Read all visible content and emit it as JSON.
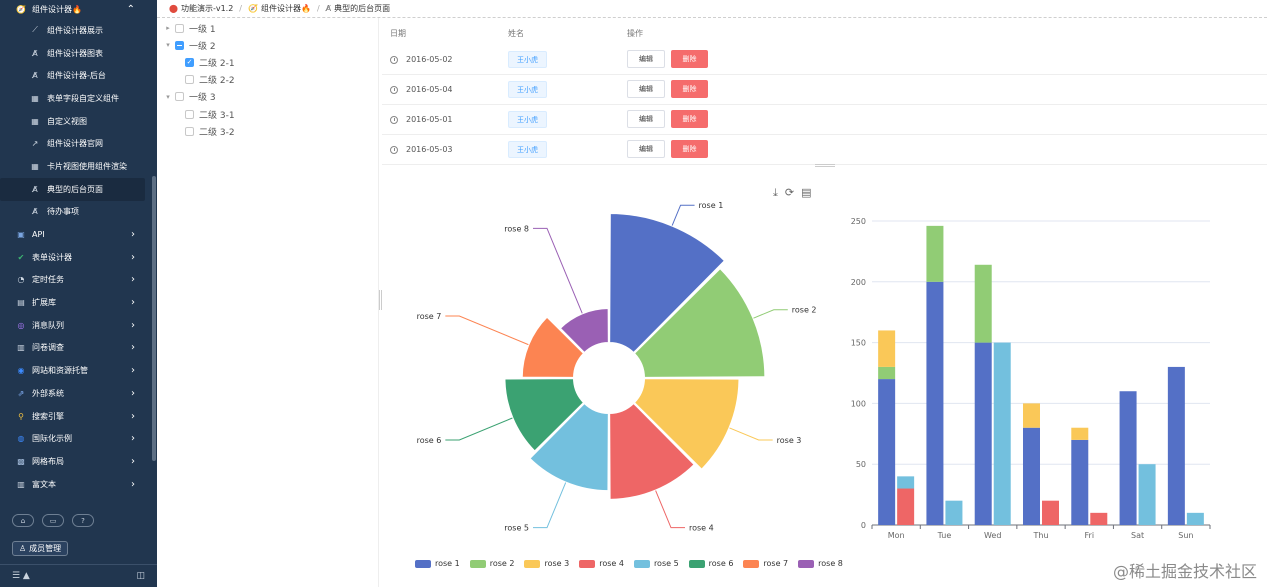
{
  "sidebar": {
    "top": {
      "label": "组件设计器🔥",
      "icon": "compass-icon"
    },
    "children": [
      {
        "label": "组件设计器展示",
        "icon": "chart-line-icon"
      },
      {
        "label": "组件设计器图表",
        "icon": "code-icon"
      },
      {
        "label": "组件设计器-后台",
        "icon": "code-icon"
      },
      {
        "label": "表单字段自定义组件",
        "icon": "grid-icon"
      },
      {
        "label": "自定义视图",
        "icon": "grid-icon"
      },
      {
        "label": "组件设计器官网",
        "icon": "external-link-icon"
      },
      {
        "label": "卡片视图使用组件渲染",
        "icon": "grid-icon"
      },
      {
        "label": "典型的后台页面",
        "icon": "code-icon",
        "active": true
      },
      {
        "label": "待办事项",
        "icon": "code-icon"
      }
    ],
    "groups": [
      {
        "label": "API",
        "icon": "api-icon"
      },
      {
        "label": "表单设计器",
        "icon": "check-icon"
      },
      {
        "label": "定时任务",
        "icon": "timer-icon"
      },
      {
        "label": "扩展库",
        "icon": "box-icon"
      },
      {
        "label": "消息队列",
        "icon": "queue-icon"
      },
      {
        "label": "问卷调查",
        "icon": "clipboard-icon"
      },
      {
        "label": "网站和资源托管",
        "icon": "globe-icon"
      },
      {
        "label": "外部系统",
        "icon": "link-icon"
      },
      {
        "label": "搜索引擎",
        "icon": "search-icon"
      },
      {
        "label": "国际化示例",
        "icon": "earth-icon"
      },
      {
        "label": "网格布局",
        "icon": "layout-icon"
      },
      {
        "label": "富文本",
        "icon": "document-icon"
      }
    ],
    "member_button": "成员管理",
    "bottom_icons": [
      "home-icon",
      "message-icon",
      "help-icon"
    ]
  },
  "breadcrumb": [
    {
      "label": "功能演示-v1.2",
      "icon": "app-icon"
    },
    {
      "label": "组件设计器🔥",
      "icon": "compass-icon"
    },
    {
      "label": "典型的后台页面",
      "icon": "code-icon"
    }
  ],
  "tree": {
    "nodes": [
      {
        "label": "一级 1",
        "level": 1,
        "caret": "right",
        "state": "unchecked"
      },
      {
        "label": "一级 2",
        "level": 1,
        "caret": "down",
        "state": "half"
      },
      {
        "label": "二级 2-1",
        "level": 2,
        "state": "checked"
      },
      {
        "label": "二级 2-2",
        "level": 2,
        "state": "unchecked"
      },
      {
        "label": "一级 3",
        "level": 1,
        "caret": "down",
        "state": "unchecked"
      },
      {
        "label": "二级 3-1",
        "level": 2,
        "state": "unchecked"
      },
      {
        "label": "二级 3-2",
        "level": 2,
        "state": "unchecked"
      }
    ]
  },
  "table": {
    "headers": {
      "date": "日期",
      "name": "姓名",
      "action": "操作"
    },
    "rows": [
      {
        "date": "2016-05-02",
        "name": "王小虎"
      },
      {
        "date": "2016-05-04",
        "name": "王小虎"
      },
      {
        "date": "2016-05-01",
        "name": "王小虎"
      },
      {
        "date": "2016-05-03",
        "name": "王小虎"
      }
    ],
    "edit_label": "编辑",
    "delete_label": "删除"
  },
  "toolbox": [
    "download-icon",
    "refresh-icon",
    "data-view-icon"
  ],
  "chart_data": [
    {
      "type": "pie",
      "subtype": "nightingale-rose",
      "series": [
        {
          "name": "rose 1",
          "value": 40,
          "color": "#5470c6"
        },
        {
          "name": "rose 2",
          "value": 38,
          "color": "#91cc75"
        },
        {
          "name": "rose 3",
          "value": 32,
          "color": "#fac858"
        },
        {
          "name": "rose 4",
          "value": 30,
          "color": "#ee6666"
        },
        {
          "name": "rose 5",
          "value": 28,
          "color": "#73c0de"
        },
        {
          "name": "rose 6",
          "value": 26,
          "color": "#3ba272"
        },
        {
          "name": "rose 7",
          "value": 22,
          "color": "#fc8452"
        },
        {
          "name": "rose 8",
          "value": 18,
          "color": "#9a60b4"
        }
      ],
      "legend_position": "bottom"
    },
    {
      "type": "bar",
      "stacked": true,
      "categories": [
        "Mon",
        "Tue",
        "Wed",
        "Thu",
        "Fri",
        "Sat",
        "Sun"
      ],
      "ylim": [
        0,
        250
      ],
      "yticks": [
        0,
        50,
        100,
        150,
        200,
        250
      ],
      "grid": true,
      "series": [
        {
          "stack": "a",
          "values": [
            120,
            200,
            150,
            80,
            70,
            110,
            130
          ],
          "color": "#5470c6"
        },
        {
          "stack": "a",
          "values": [
            10,
            46,
            64,
            0,
            0,
            0,
            0
          ],
          "color": "#91cc75"
        },
        {
          "stack": "a",
          "values": [
            30,
            0,
            0,
            20,
            10,
            0,
            0
          ],
          "color": "#fac858"
        },
        {
          "stack": "b",
          "values": [
            30,
            0,
            0,
            20,
            10,
            0,
            0
          ],
          "color": "#ee6666"
        },
        {
          "stack": "b",
          "values": [
            10,
            20,
            150,
            0,
            0,
            50,
            10
          ],
          "color": "#73c0de"
        }
      ]
    }
  ],
  "watermark": "@稀土掘金技术社区"
}
